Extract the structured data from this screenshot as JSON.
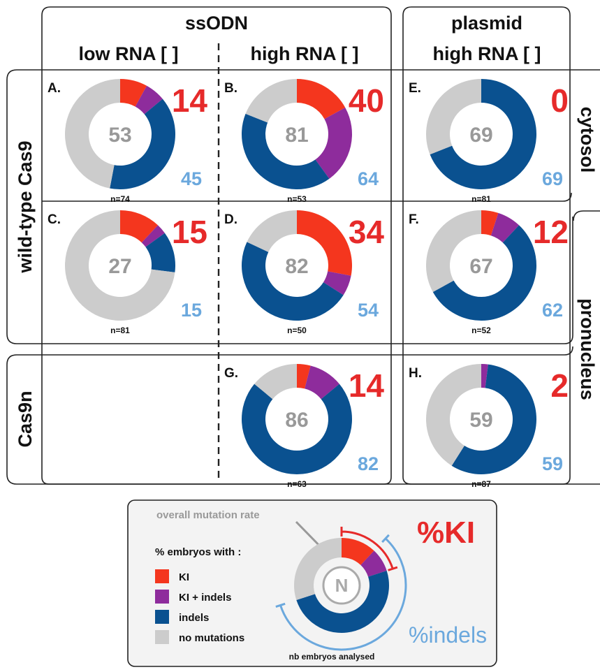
{
  "headers": {
    "ssodn": "ssODN",
    "plasmid": "plasmid",
    "low_rna": "low RNA [ ]",
    "high_rna_ssodn": "high RNA [ ]",
    "high_rna_plasmid": "high RNA [ ]",
    "wild_type": "wild-type Cas9",
    "cas9n": "Cas9n",
    "cytosol": "cytosol",
    "pronucleus": "pronucleus"
  },
  "colors": {
    "ki": "#f4361e",
    "ki_indels": "#8e2c9c",
    "indels": "#0a5190",
    "no_mutations": "#cccccc",
    "ki_number": "#e62a2a",
    "indels_number": "#6ba8dd",
    "overall_number": "#999999"
  },
  "chart_data": [
    {
      "type": "pie",
      "label": "A.",
      "values": {
        "ki": 8,
        "ki_indels": 6,
        "indels": 39,
        "no_mutations": 47
      },
      "overall": "53",
      "ki_pct": "14",
      "indels_pct": "45",
      "n": "n=74"
    },
    {
      "type": "pie",
      "label": "B.",
      "values": {
        "ki": 17,
        "ki_indels": 23,
        "indels": 41,
        "no_mutations": 19
      },
      "overall": "81",
      "ki_pct": "40",
      "indels_pct": "64",
      "n": "n=53"
    },
    {
      "type": "pie",
      "label": "E.",
      "values": {
        "ki": 0,
        "ki_indels": 0,
        "indels": 69,
        "no_mutations": 31
      },
      "overall": "69",
      "ki_pct": "0",
      "indels_pct": "69",
      "n": "n=81"
    },
    {
      "type": "pie",
      "label": "C.",
      "values": {
        "ki": 12,
        "ki_indels": 3,
        "indels": 12,
        "no_mutations": 73
      },
      "overall": "27",
      "ki_pct": "15",
      "indels_pct": "15",
      "n": "n=81"
    },
    {
      "type": "pie",
      "label": "D.",
      "values": {
        "ki": 28,
        "ki_indels": 6,
        "indels": 48,
        "no_mutations": 18
      },
      "overall": "82",
      "ki_pct": "34",
      "indels_pct": "54",
      "n": "n=50"
    },
    {
      "type": "pie",
      "label": "F.",
      "values": {
        "ki": 5,
        "ki_indels": 7,
        "indels": 55,
        "no_mutations": 33
      },
      "overall": "67",
      "ki_pct": "12",
      "indels_pct": "62",
      "n": "n=52"
    },
    {
      "type": "pie",
      "label": "G.",
      "values": {
        "ki": 4,
        "ki_indels": 10,
        "indels": 72,
        "no_mutations": 14
      },
      "overall": "86",
      "ki_pct": "14",
      "indels_pct": "82",
      "n": "n=63"
    },
    {
      "type": "pie",
      "label": "H.",
      "values": {
        "ki": 0,
        "ki_indels": 2,
        "indels": 57,
        "no_mutations": 41
      },
      "overall": "59",
      "ki_pct": "2",
      "indels_pct": "59",
      "n": "n=87"
    }
  ],
  "legend": {
    "overall_label": "overall mutation rate",
    "title": "% embryos with :",
    "items": [
      {
        "key": "ki",
        "label": "KI"
      },
      {
        "key": "ki_indels",
        "label": "KI + indels"
      },
      {
        "key": "indels",
        "label": "indels"
      },
      {
        "key": "no_mutations",
        "label": "no mutations"
      }
    ],
    "center": "N",
    "ki_label": "%KI",
    "indels_label": "%indels",
    "embryos_label": "nb embryos analysed",
    "example_values": {
      "ki": 12,
      "ki_indels": 8,
      "indels": 50,
      "no_mutations": 30
    }
  }
}
